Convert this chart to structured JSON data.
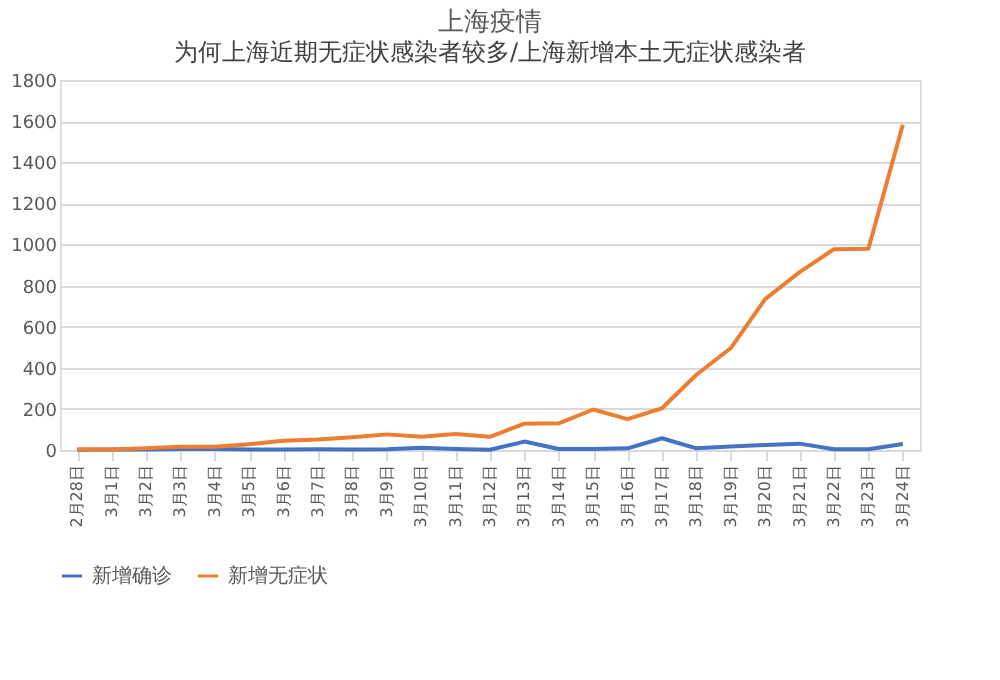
{
  "chart_data": {
    "type": "line",
    "title": "上海疫情",
    "subtitle": "为何上海近期无症状感染者较多/上海新增本土无症状感染者",
    "categories": [
      "2月28日",
      "3月1日",
      "3月2日",
      "3月3日",
      "3月4日",
      "3月5日",
      "3月6日",
      "3月7日",
      "3月8日",
      "3月9日",
      "3月10日",
      "3月11日",
      "3月12日",
      "3月13日",
      "3月14日",
      "3月15日",
      "3月16日",
      "3月17日",
      "3月18日",
      "3月19日",
      "3月20日",
      "3月21日",
      "3月22日",
      "3月23日",
      "3月24日"
    ],
    "series": [
      {
        "name": "新增确诊",
        "color": "#4472c4",
        "values": [
          1,
          2,
          2,
          5,
          5,
          3,
          3,
          4,
          3,
          4,
          11,
          5,
          1,
          41,
          5,
          5,
          8,
          57,
          8,
          17,
          24,
          31,
          4,
          4,
          29
        ]
      },
      {
        "name": "新增无症状",
        "color": "#ed7d31",
        "values": [
          4,
          3,
          8,
          16,
          16,
          28,
          45,
          51,
          62,
          76,
          64,
          78,
          64,
          128,
          130,
          197,
          150,
          203,
          366,
          496,
          734,
          865,
          977,
          979,
          1582
        ]
      }
    ],
    "ylim": [
      0,
      1800
    ],
    "yticks": [
      0,
      200,
      400,
      600,
      800,
      1000,
      1200,
      1400,
      1600,
      1800
    ],
    "grid": "y",
    "legend": "bottom",
    "marker": "none",
    "line_style": "solid"
  }
}
